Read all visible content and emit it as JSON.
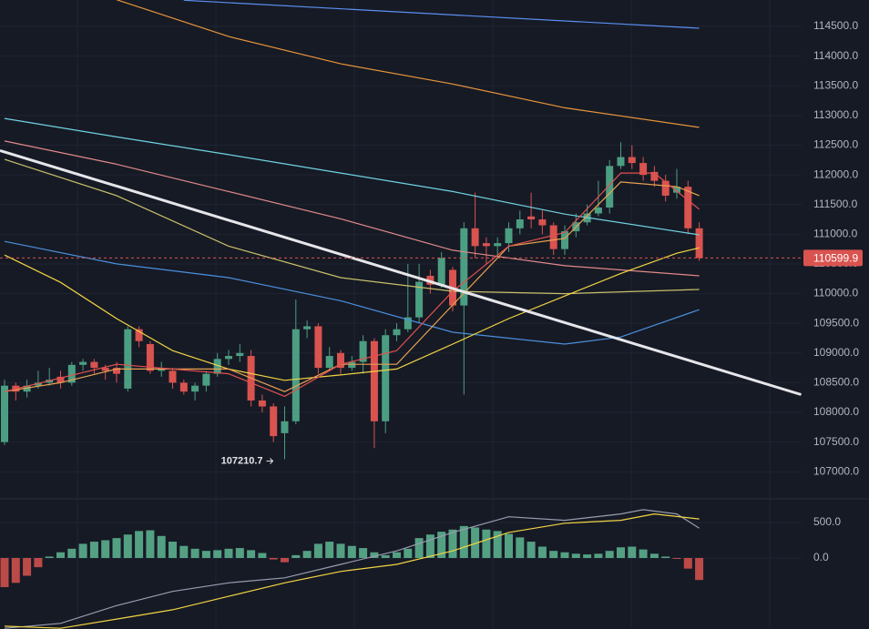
{
  "chart_data": [
    {
      "type": "candlestick",
      "up_color": "#4c9e82",
      "down_color": "#d9534f",
      "ylim": [
        106590,
        114945
      ],
      "yticks": [
        {
          "value": 107000,
          "label": "107000.0"
        },
        {
          "value": 107500,
          "label": "107500.0"
        },
        {
          "value": 108000,
          "label": "108000.0"
        },
        {
          "value": 108500,
          "label": "108500.0"
        },
        {
          "value": 109000,
          "label": "109000.0"
        },
        {
          "value": 109500,
          "label": "109500.0"
        },
        {
          "value": 110000,
          "label": "110000.0"
        },
        {
          "value": 110500,
          "label": "110500.0"
        },
        {
          "value": 111000,
          "label": "111000.0"
        },
        {
          "value": 111500,
          "label": "111500.0"
        },
        {
          "value": 112000,
          "label": "112000.0"
        },
        {
          "value": 112500,
          "label": "112500.0"
        },
        {
          "value": 113000,
          "label": "113000.0"
        },
        {
          "value": 113500,
          "label": "113500.0"
        },
        {
          "value": 114000,
          "label": "114000.0"
        },
        {
          "value": 114500,
          "label": "114500.0"
        }
      ],
      "grid": true,
      "open": [
        107500,
        108450,
        108350,
        108450,
        108500,
        108600,
        108500,
        108800,
        108850,
        108750,
        108750,
        108400,
        109400,
        109150,
        108700,
        108700,
        108500,
        108350,
        108450,
        108650,
        108900,
        108950,
        108950,
        108200,
        108100,
        107650,
        107850,
        109400,
        109450,
        108750,
        109000,
        108750,
        108850,
        109200,
        107850,
        109300,
        109400,
        109600,
        110300,
        110150,
        110400,
        109800,
        111100,
        110850,
        110800,
        110850,
        111100,
        111300,
        111250,
        111150,
        110750,
        111050,
        111200,
        111350,
        111450,
        112150,
        112300,
        112200,
        112050,
        111900,
        111700,
        111800,
        111100
      ],
      "high": [
        108550,
        108500,
        108550,
        108700,
        108750,
        108700,
        108850,
        108900,
        108900,
        108800,
        108850,
        109450,
        109450,
        109200,
        108850,
        108750,
        108550,
        108500,
        108700,
        109000,
        109050,
        109150,
        109050,
        108300,
        108150,
        108100,
        109900,
        109550,
        109500,
        109100,
        109050,
        108950,
        109300,
        109250,
        109400,
        109500,
        110500,
        110500,
        110400,
        110700,
        110450,
        111200,
        111700,
        110950,
        110950,
        111200,
        111400,
        111700,
        111400,
        111200,
        111150,
        111350,
        111500,
        111900,
        112250,
        112550,
        112500,
        112300,
        112150,
        112000,
        112100,
        111900,
        111200
      ],
      "low": [
        107450,
        108200,
        108250,
        108400,
        108450,
        108400,
        108450,
        108700,
        108650,
        108550,
        108500,
        108350,
        109100,
        108650,
        108600,
        108400,
        108300,
        108200,
        108350,
        108600,
        108800,
        108850,
        108100,
        108000,
        107500,
        107210.7,
        107800,
        109250,
        108650,
        108700,
        108650,
        108700,
        108650,
        107400,
        107650,
        109200,
        109350,
        109500,
        110000,
        110100,
        109700,
        108300,
        110600,
        110500,
        110600,
        110700,
        111000,
        111100,
        111000,
        110650,
        110650,
        110950,
        111150,
        111300,
        111350,
        112100,
        112100,
        111900,
        111800,
        111550,
        111600,
        111000,
        110550
      ],
      "close": [
        108450,
        108350,
        108450,
        108500,
        108550,
        108500,
        108800,
        108850,
        108750,
        108700,
        108650,
        109400,
        109200,
        108700,
        108750,
        108500,
        108350,
        108450,
        108650,
        108900,
        108950,
        109000,
        108200,
        108100,
        107600,
        107850,
        109400,
        109450,
        108750,
        108950,
        108750,
        108850,
        109200,
        107850,
        109300,
        109400,
        109600,
        110200,
        110150,
        110600,
        109800,
        111100,
        110800,
        110800,
        110850,
        111100,
        111250,
        111250,
        111150,
        110750,
        111050,
        111200,
        111350,
        111450,
        112150,
        112300,
        112200,
        112000,
        111900,
        111650,
        111800,
        111100,
        110599.9
      ],
      "series": [
        {
          "color": "#5b8ff0",
          "x": [
            16,
            62
          ],
          "values": [
            114940,
            114470
          ]
        },
        {
          "color": "#e8943a",
          "x": [
            10,
            20,
            30,
            40,
            50,
            62
          ],
          "values": [
            114950,
            114330,
            113870,
            113530,
            113130,
            112800
          ]
        },
        {
          "color": "#6fd3e0",
          "x": [
            0,
            10,
            20,
            30,
            40,
            50,
            62
          ],
          "values": [
            112950,
            112640,
            112340,
            112030,
            111720,
            111340,
            110990
          ]
        },
        {
          "color": "#e08a8a",
          "x": [
            0,
            10,
            20,
            30,
            40,
            50,
            62
          ],
          "values": [
            112570,
            112180,
            111720,
            111260,
            110730,
            110470,
            110300
          ]
        },
        {
          "color": "#c9c06a",
          "x": [
            0,
            10,
            20,
            30,
            40,
            50,
            62
          ],
          "values": [
            112260,
            111650,
            110800,
            110270,
            110040,
            110000,
            110070
          ]
        },
        {
          "color": "#4a8fdc",
          "x": [
            0,
            10,
            20,
            30,
            40,
            50,
            55,
            62
          ],
          "values": [
            110880,
            110500,
            110270,
            109880,
            109350,
            109150,
            109270,
            109730
          ]
        },
        {
          "color": "#f2d443",
          "x": [
            0,
            5,
            10,
            15,
            20,
            25,
            30,
            35,
            40,
            45,
            50,
            55,
            60,
            62
          ],
          "values": [
            110650,
            110190,
            109580,
            109040,
            108730,
            108540,
            108630,
            108730,
            109150,
            109580,
            109960,
            110340,
            110680,
            110770
          ]
        },
        {
          "color": "#e8a050",
          "x": [
            0,
            5,
            10,
            15,
            20,
            25,
            30,
            35,
            40,
            45,
            50,
            55,
            60,
            62
          ],
          "values": [
            108350,
            108500,
            108730,
            108730,
            108730,
            108350,
            108810,
            108810,
            109810,
            110800,
            110930,
            111880,
            111800,
            111650
          ]
        },
        {
          "color": "#e05050",
          "x": [
            0,
            10,
            20,
            25,
            30,
            35,
            40,
            45,
            50,
            55,
            58,
            62
          ],
          "values": [
            108350,
            108810,
            108650,
            108270,
            108810,
            109040,
            110040,
            110800,
            111030,
            112030,
            112030,
            111420
          ]
        },
        {
          "color": "#e6e6ea",
          "x": [
            -0.41,
            71.1
          ],
          "values": [
            112410,
            108300
          ]
        }
      ]
    },
    {
      "type": "macd",
      "ylim": [
        -1000,
        833
      ],
      "yticks": [
        {
          "value": 0,
          "label": "0.0"
        },
        {
          "value": 500,
          "label": "500.0"
        }
      ],
      "up_color": "#5fb894",
      "down_color": "#d9534f",
      "values": [
        -410,
        -350,
        -250,
        -130,
        20,
        80,
        130,
        200,
        230,
        250,
        280,
        330,
        380,
        390,
        310,
        230,
        170,
        130,
        100,
        110,
        130,
        140,
        110,
        70,
        -20,
        -60,
        40,
        100,
        200,
        230,
        200,
        170,
        140,
        80,
        40,
        80,
        130,
        280,
        330,
        370,
        400,
        450,
        430,
        400,
        380,
        340,
        290,
        230,
        160,
        100,
        80,
        60,
        50,
        60,
        100,
        150,
        160,
        120,
        60,
        20,
        -10,
        -150,
        -310
      ],
      "series": [
        {
          "color": "#9a9cb0",
          "x": [
            0,
            5,
            10,
            15,
            20,
            25,
            30,
            35,
            40,
            45,
            50,
            55,
            57,
            60,
            62
          ],
          "values": [
            -990,
            -920,
            -670,
            -470,
            -350,
            -280,
            -90,
            100,
            360,
            580,
            530,
            620,
            680,
            620,
            420
          ]
        },
        {
          "color": "#f2d443",
          "x": [
            0,
            5,
            10,
            15,
            20,
            25,
            30,
            35,
            40,
            45,
            50,
            55,
            58,
            62
          ],
          "values": [
            -960,
            -990,
            -860,
            -730,
            -540,
            -350,
            -190,
            -90,
            100,
            360,
            490,
            530,
            620,
            550
          ]
        }
      ]
    }
  ]
}
